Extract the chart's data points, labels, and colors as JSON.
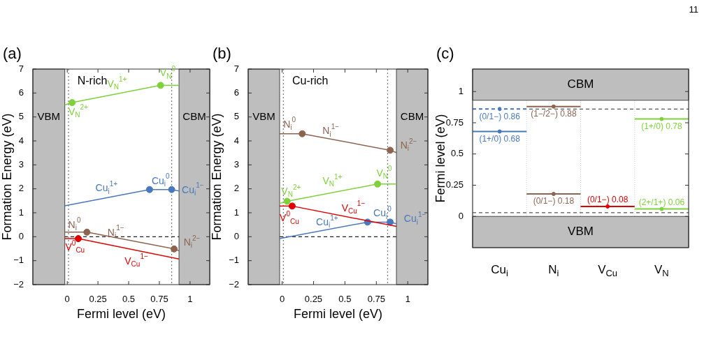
{
  "chart_data": [
    {
      "title": "(a)",
      "subtitle": "N-rich",
      "type": "line",
      "xlabel": "Fermi level (eV)",
      "ylabel": "Formation Energy (eV)",
      "xlim": [
        -0.28,
        1.16
      ],
      "xticks": [
        0,
        0.25,
        0.5,
        0.75,
        1
      ],
      "ylim": [
        -2,
        7
      ],
      "yticks": [
        -2,
        -1,
        0,
        1,
        2,
        3,
        4,
        5,
        6,
        7
      ],
      "grid": false,
      "legend": false,
      "marker": "none",
      "bands": [
        {
          "axis": "x",
          "from": -0.28,
          "to": -0.02,
          "label": "VBM",
          "color": "#bebebe"
        },
        {
          "axis": "x",
          "from": 0.91,
          "to": 1.16,
          "label": "CBM",
          "color": "#bebebe"
        }
      ],
      "ref_lines": [
        {
          "axis": "x",
          "value": 0.01,
          "line_style": "dotted",
          "color": "#777777"
        },
        {
          "axis": "x",
          "value": 0.85,
          "line_style": "dotted",
          "color": "#777777"
        },
        {
          "axis": "y",
          "value": 0,
          "line_style": "dashed",
          "color": "#222222"
        }
      ],
      "series": [
        {
          "name": "V$_{N}$$^{2+}$",
          "color": "#7fd13b",
          "x": [
            -0.02,
            0.04
          ],
          "values": [
            5.5,
            5.6
          ]
        },
        {
          "name": "V$_{N}$$^{1+}$",
          "color": "#7fd13b",
          "x": [
            0.04,
            0.76
          ],
          "values": [
            5.6,
            6.32
          ]
        },
        {
          "name": "V$_{N}$$^{0}$",
          "color": "#7fd13b",
          "x": [
            0.76,
            0.91
          ],
          "values": [
            6.32,
            6.32
          ]
        },
        {
          "name": "Cu$_{i}$$^{1+}$",
          "color": "#4a78bd",
          "x": [
            -0.02,
            0.67
          ],
          "values": [
            1.29,
            1.97
          ]
        },
        {
          "name": "Cu$_{i}$$^{0}$",
          "color": "#4a78bd",
          "x": [
            0.67,
            0.85
          ],
          "values": [
            1.97,
            1.97
          ]
        },
        {
          "name": "Cu$_{i}$$^{1−}$",
          "color": "#4a78bd",
          "x": [
            0.85,
            0.91
          ],
          "values": [
            1.97,
            1.91
          ]
        },
        {
          "name": "N$_{i}$$^{0}$",
          "color": "#8c6450",
          "x": [
            -0.02,
            0.16
          ],
          "values": [
            0.19,
            0.19
          ]
        },
        {
          "name": "N$_{i}$$^{1−}$",
          "color": "#8c6450",
          "x": [
            0.16,
            0.87
          ],
          "values": [
            0.19,
            -0.51
          ]
        },
        {
          "name": "N$_{i}$$^{2−}$",
          "color": "#8c6450",
          "x": [
            0.87,
            0.91
          ],
          "values": [
            -0.51,
            -0.59
          ]
        },
        {
          "name": "V$^{0}$$_{Cu}$",
          "color": "#e00000",
          "x": [
            -0.02,
            0.09
          ],
          "values": [
            -0.08,
            -0.08
          ]
        },
        {
          "name": "V$_{Cu}$$^{1−}$",
          "color": "#e00000",
          "x": [
            0.09,
            0.91
          ],
          "values": [
            -0.08,
            -0.93
          ]
        },
        {
          "type": "scatter",
          "marker": "circle",
          "x": [
            0.04,
            0.76,
            0.67,
            0.85,
            0.16,
            0.87,
            0.09
          ],
          "values": [
            5.6,
            6.32,
            1.97,
            1.97,
            0.19,
            -0.51,
            -0.08
          ],
          "colors": [
            "#7fd13b",
            "#7fd13b",
            "#4a78bd",
            "#4a78bd",
            "#8c6450",
            "#8c6450",
            "#e00000"
          ]
        }
      ]
    },
    {
      "title": "(b)",
      "subtitle": "Cu-rich",
      "type": "line",
      "xlabel": "Fermi level (eV)",
      "ylabel": "Formation Energy (eV)",
      "xlim": [
        -0.27,
        1.16
      ],
      "xticks": [
        0,
        0.25,
        0.5,
        0.75,
        1
      ],
      "ylim": [
        -2,
        7
      ],
      "yticks": [
        -2,
        -1,
        0,
        1,
        2,
        3,
        4,
        5,
        6,
        7
      ],
      "grid": false,
      "legend": false,
      "marker": "none",
      "bands": [
        {
          "axis": "x",
          "from": -0.27,
          "to": -0.02,
          "label": "VBM",
          "color": "#bebebe"
        },
        {
          "axis": "x",
          "from": 0.91,
          "to": 1.16,
          "label": "CBM",
          "color": "#bebebe"
        }
      ],
      "ref_lines": [
        {
          "axis": "x",
          "value": 0.01,
          "line_style": "dotted",
          "color": "#777777"
        },
        {
          "axis": "x",
          "value": 0.84,
          "line_style": "dotted",
          "color": "#777777"
        },
        {
          "axis": "y",
          "value": 0,
          "line_style": "dashed",
          "color": "#222222"
        }
      ],
      "series": [
        {
          "name": "N$_{i}$$^{0}$",
          "color": "#8c6450",
          "x": [
            -0.02,
            0.16
          ],
          "values": [
            4.3,
            4.3
          ]
        },
        {
          "name": "N$_{i}$$^{1−}$",
          "color": "#8c6450",
          "x": [
            0.16,
            0.86
          ],
          "values": [
            4.3,
            3.61
          ]
        },
        {
          "name": "N$_{i}$$^{2−}$",
          "color": "#8c6450",
          "x": [
            0.86,
            0.91
          ],
          "values": [
            3.61,
            3.51
          ]
        },
        {
          "name": "V$_{N}$$^{2+}$",
          "color": "#7fd13b",
          "x": [
            -0.02,
            0.04
          ],
          "values": [
            1.39,
            1.48
          ]
        },
        {
          "name": "V$_{N}$$^{1+}$",
          "color": "#7fd13b",
          "x": [
            0.04,
            0.76
          ],
          "values": [
            1.48,
            2.2
          ]
        },
        {
          "name": "V$_{N}$$^{0}$",
          "color": "#7fd13b",
          "x": [
            0.76,
            0.91
          ],
          "values": [
            2.2,
            2.2
          ]
        },
        {
          "name": "V$^{0}$$_{Cu}$",
          "color": "#e00000",
          "x": [
            -0.02,
            0.08
          ],
          "values": [
            1.28,
            1.28
          ]
        },
        {
          "name": "V$_{Cu}$$^{1−}$",
          "color": "#e00000",
          "x": [
            0.08,
            0.91
          ],
          "values": [
            1.28,
            0.43
          ]
        },
        {
          "name": "Cu$_{i}$$^{1+}$",
          "color": "#4a78bd",
          "x": [
            -0.02,
            0.68
          ],
          "values": [
            -0.08,
            0.61
          ]
        },
        {
          "name": "Cu$_{i}$$^{0}$",
          "color": "#4a78bd",
          "x": [
            0.68,
            0.86
          ],
          "values": [
            0.61,
            0.61
          ]
        },
        {
          "name": "Cu$_{i}$$^{1−}$",
          "color": "#4a78bd",
          "x": [
            0.86,
            0.91
          ],
          "values": [
            0.61,
            0.54
          ]
        },
        {
          "type": "scatter",
          "marker": "circle",
          "x": [
            0.16,
            0.86,
            0.04,
            0.76,
            0.08,
            0.68,
            0.86
          ],
          "values": [
            4.3,
            3.61,
            1.48,
            2.2,
            1.28,
            0.61,
            0.61
          ],
          "colors": [
            "#8c6450",
            "#8c6450",
            "#7fd13b",
            "#7fd13b",
            "#e00000",
            "#4a78bd",
            "#4a78bd"
          ]
        }
      ]
    },
    {
      "title": "(c)",
      "type": "line",
      "ylabel": "Fermi level (eV)",
      "categories": [
        "Cu$_{i}$",
        "N$_{i}$",
        "V$_{Cu}$",
        "V$_{N}$"
      ],
      "ylim": [
        -0.25,
        1.18
      ],
      "yticks": [
        0,
        0.25,
        0.5,
        0.75,
        1
      ],
      "grid": "x",
      "legend": false,
      "marker": "circle",
      "bands": [
        {
          "axis": "y",
          "from": -0.25,
          "to": 0,
          "label": "VBM",
          "color": "#bebebe"
        },
        {
          "axis": "y",
          "from": 0.93,
          "to": 1.18,
          "label": "CBM",
          "color": "#bebebe"
        }
      ],
      "ref_lines": [
        {
          "axis": "y",
          "value": 0.86,
          "line_style": "dashed",
          "color": "#555555"
        },
        {
          "axis": "y",
          "value": 0.03,
          "line_style": "dashed",
          "color": "#555555"
        }
      ],
      "series": [
        {
          "color": "#4a78bd",
          "line_style": "dashed",
          "values": [
            0.86,
            null,
            null,
            null
          ],
          "value_labels": [
            "(0/1−) 0.86",
            null,
            null,
            null
          ]
        },
        {
          "color": "#4a78bd",
          "values": [
            0.68,
            null,
            null,
            null
          ],
          "value_labels": [
            "(1+/0) 0.68",
            null,
            null,
            null
          ]
        },
        {
          "color": "#8c6450",
          "values": [
            null,
            0.88,
            null,
            null
          ],
          "value_labels": [
            null,
            "(1−/2−) 0.88",
            null,
            null
          ]
        },
        {
          "color": "#8c6450",
          "values": [
            null,
            0.18,
            null,
            null
          ],
          "value_labels": [
            null,
            "(0/1−) 0.18",
            null,
            null
          ]
        },
        {
          "color": "#e00000",
          "values": [
            null,
            null,
            0.08,
            null
          ],
          "value_labels": [
            null,
            null,
            "(0/1−) 0.08",
            null
          ]
        },
        {
          "color": "#7fd13b",
          "values": [
            null,
            null,
            null,
            0.78
          ],
          "value_labels": [
            null,
            null,
            null,
            "(1+/0) 0.78"
          ]
        },
        {
          "color": "#7fd13b",
          "values": [
            null,
            null,
            null,
            0.06
          ],
          "value_labels": [
            null,
            null,
            null,
            "(2+/1+) 0.06"
          ]
        }
      ],
      "annotations": [
        "11"
      ]
    }
  ]
}
